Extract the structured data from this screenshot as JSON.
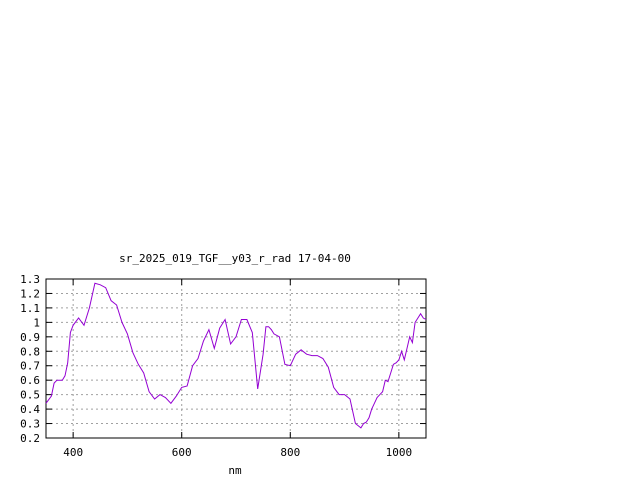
{
  "chart_data": {
    "type": "line",
    "title": "sr_2025_019_TGF__y03_r_rad 17-04-00",
    "xlabel": "nm",
    "ylabel": "",
    "xlim": [
      350,
      1050
    ],
    "ylim": [
      0.2,
      1.3
    ],
    "x_ticks": [
      400,
      600,
      800,
      1000
    ],
    "y_ticks": [
      0.2,
      0.3,
      0.4,
      0.5,
      0.6,
      0.7,
      0.8,
      0.9,
      1,
      1.1,
      1.2,
      1.3
    ],
    "grid": true,
    "series": [
      {
        "color": "#9400d3",
        "x": [
          350,
          360,
          365,
          370,
          380,
          385,
          390,
          395,
          400,
          410,
          420,
          430,
          440,
          450,
          460,
          470,
          480,
          490,
          500,
          510,
          520,
          530,
          540,
          550,
          560,
          570,
          580,
          590,
          600,
          610,
          620,
          630,
          640,
          650,
          660,
          670,
          680,
          690,
          700,
          710,
          720,
          730,
          740,
          750,
          755,
          760,
          765,
          770,
          780,
          790,
          800,
          810,
          820,
          830,
          840,
          850,
          860,
          870,
          880,
          890,
          900,
          910,
          920,
          930,
          935,
          940,
          945,
          950,
          955,
          960,
          970,
          975,
          980,
          985,
          990,
          995,
          1000,
          1005,
          1010,
          1015,
          1020,
          1025,
          1030,
          1035,
          1040,
          1045,
          1050
        ],
        "y": [
          0.44,
          0.49,
          0.58,
          0.6,
          0.6,
          0.63,
          0.72,
          0.93,
          0.98,
          1.03,
          0.98,
          1.1,
          1.27,
          1.26,
          1.24,
          1.15,
          1.12,
          1.0,
          0.92,
          0.79,
          0.71,
          0.65,
          0.52,
          0.47,
          0.5,
          0.48,
          0.44,
          0.49,
          0.55,
          0.56,
          0.7,
          0.75,
          0.87,
          0.95,
          0.82,
          0.96,
          1.02,
          0.85,
          0.9,
          1.02,
          1.02,
          0.93,
          0.54,
          0.78,
          0.97,
          0.97,
          0.95,
          0.92,
          0.9,
          0.71,
          0.7,
          0.78,
          0.81,
          0.78,
          0.77,
          0.77,
          0.75,
          0.69,
          0.55,
          0.5,
          0.5,
          0.47,
          0.3,
          0.27,
          0.3,
          0.31,
          0.34,
          0.4,
          0.44,
          0.48,
          0.52,
          0.6,
          0.59,
          0.65,
          0.71,
          0.72,
          0.74,
          0.8,
          0.74,
          0.82,
          0.9,
          0.86,
          1.0,
          1.03,
          1.06,
          1.03,
          1.02
        ]
      }
    ]
  }
}
